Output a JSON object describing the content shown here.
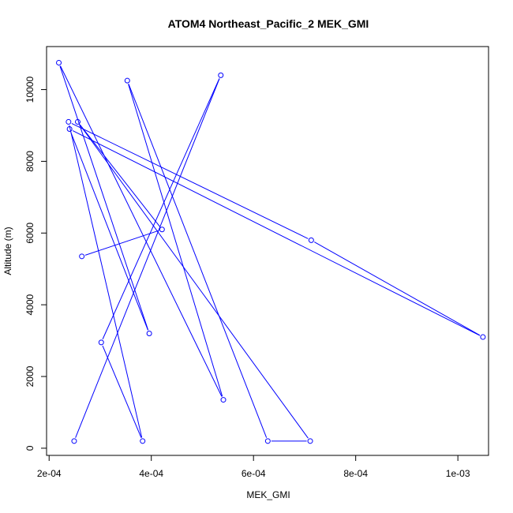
{
  "chart_data": {
    "type": "line",
    "title": "ATOM4 Northeast_Pacific_2 MEK_GMI",
    "xlabel": "MEK_GMI",
    "ylabel": "Altitude (m)",
    "xlim": [
      0.000195,
      0.00106
    ],
    "ylim": [
      -200,
      11200
    ],
    "x_ticks": [
      0.0002,
      0.0004,
      0.0006,
      0.0008,
      0.001
    ],
    "x_tick_labels": [
      "2e-04",
      "4e-04",
      "6e-04",
      "8e-04",
      "1e-03"
    ],
    "y_ticks": [
      0,
      2000,
      4000,
      6000,
      8000,
      10000
    ],
    "y_tick_labels": [
      "0",
      "2000",
      "4000",
      "6000",
      "8000",
      "10000"
    ],
    "grid": false,
    "marker": "open-circle",
    "color": "#0000ff",
    "series": [
      {
        "x": [
          0.000249,
          0.000536,
          0.000302,
          0.000383,
          0.000238,
          0.000713,
          0.001049,
          0.00024,
          0.000396,
          0.000219,
          0.000541,
          0.000353,
          0.000628,
          0.000711,
          0.000256,
          0.000421,
          0.000264
        ],
        "y": [
          200,
          10400,
          2950,
          200,
          9100,
          5800,
          3100,
          8900,
          3200,
          10750,
          1350,
          10250,
          200,
          200,
          9100,
          6100,
          5350
        ]
      }
    ]
  }
}
